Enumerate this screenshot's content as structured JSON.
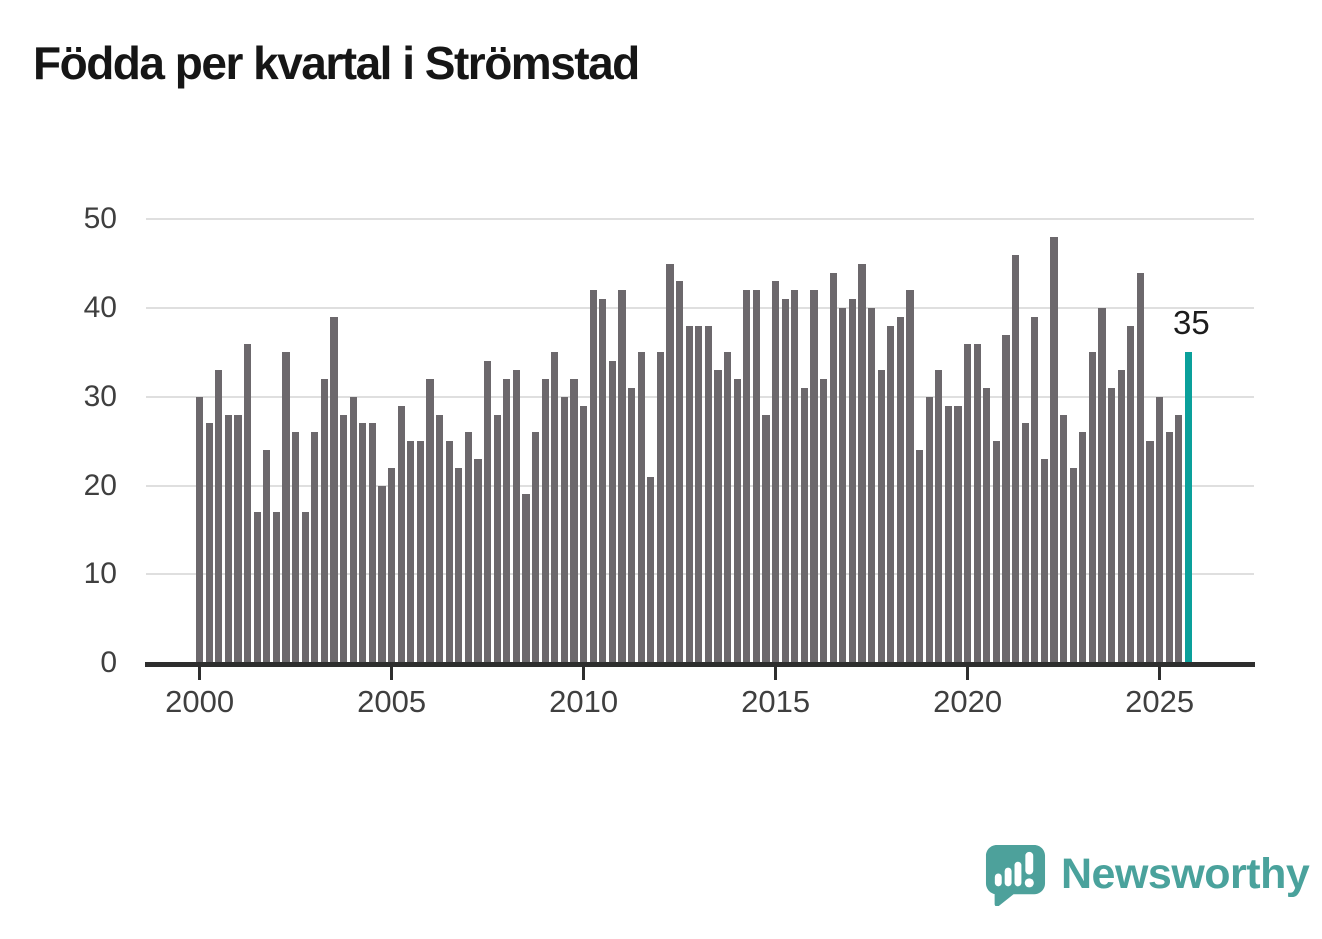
{
  "title": "Födda per kvartal i Strömstad",
  "annotation": {
    "label": "35"
  },
  "logo": {
    "text": "Newsworthy",
    "icon": "newsworthy-pin-icon"
  },
  "colors": {
    "bar": "#6c686c",
    "highlight": "#0aa09b",
    "gridline": "#dfdfdf",
    "axis": "#2e2e2e",
    "tick_label": "#3f3f3f",
    "title": "#161616",
    "annotation": "#1c1c1c",
    "logo": "#4aa29c"
  },
  "chart_data": {
    "type": "bar",
    "title": "Födda per kvartal i Strömstad",
    "x_axis": {
      "start": "2000 Q1",
      "end": "2025 Q4",
      "frequency": "quarterly",
      "tick_labels": [
        "2000",
        "2005",
        "2010",
        "2015",
        "2020",
        "2025"
      ],
      "tick_indices": [
        0,
        20,
        40,
        60,
        80,
        100
      ]
    },
    "y_axis": {
      "tick_labels": [
        "0",
        "10",
        "20",
        "30",
        "40",
        "50"
      ],
      "range": [
        0,
        50
      ],
      "grid": true
    },
    "values": [
      30,
      27,
      33,
      28,
      28,
      36,
      17,
      24,
      17,
      35,
      26,
      17,
      26,
      32,
      39,
      28,
      30,
      27,
      27,
      20,
      22,
      29,
      25,
      25,
      32,
      28,
      25,
      22,
      26,
      23,
      34,
      28,
      32,
      33,
      19,
      26,
      32,
      35,
      30,
      32,
      29,
      42,
      41,
      34,
      42,
      31,
      35,
      21,
      35,
      45,
      43,
      38,
      38,
      38,
      33,
      35,
      32,
      42,
      42,
      28,
      43,
      41,
      42,
      31,
      42,
      32,
      44,
      40,
      41,
      45,
      40,
      33,
      38,
      39,
      42,
      24,
      30,
      33,
      29,
      29,
      36,
      36,
      31,
      25,
      37,
      46,
      27,
      39,
      23,
      48,
      28,
      22,
      26,
      35,
      40,
      31,
      33,
      38,
      44,
      25,
      30,
      26,
      28,
      35
    ],
    "highlight_index": 103,
    "highlight_value_label": "35",
    "legend": "none"
  }
}
